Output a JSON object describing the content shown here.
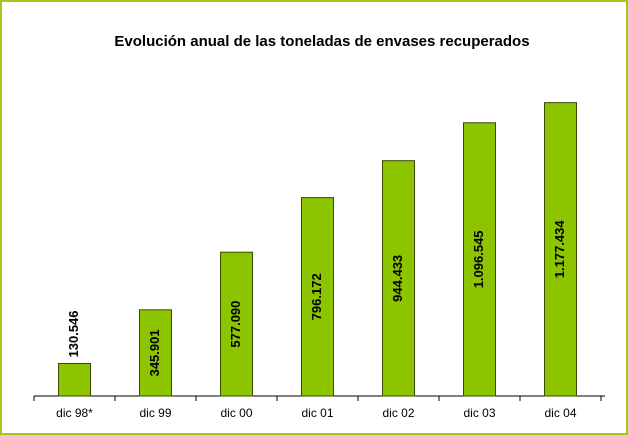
{
  "chart_data": {
    "type": "bar",
    "title": "Evolución anual  de las toneladas de envases recuperados",
    "categories": [
      "dic 98*",
      "dic 99",
      "dic 00",
      "dic 01",
      "dic 02",
      "dic 03",
      "dic 04"
    ],
    "values": [
      130546,
      345901,
      577090,
      796172,
      944433,
      1096545,
      1177434
    ],
    "value_labels": [
      "130.546",
      "345.901",
      "577.090",
      "796.172",
      "944.433",
      "1.096.545",
      "1.177.434"
    ],
    "color": "#8cc400",
    "ylim": [
      0,
      1200000
    ]
  }
}
